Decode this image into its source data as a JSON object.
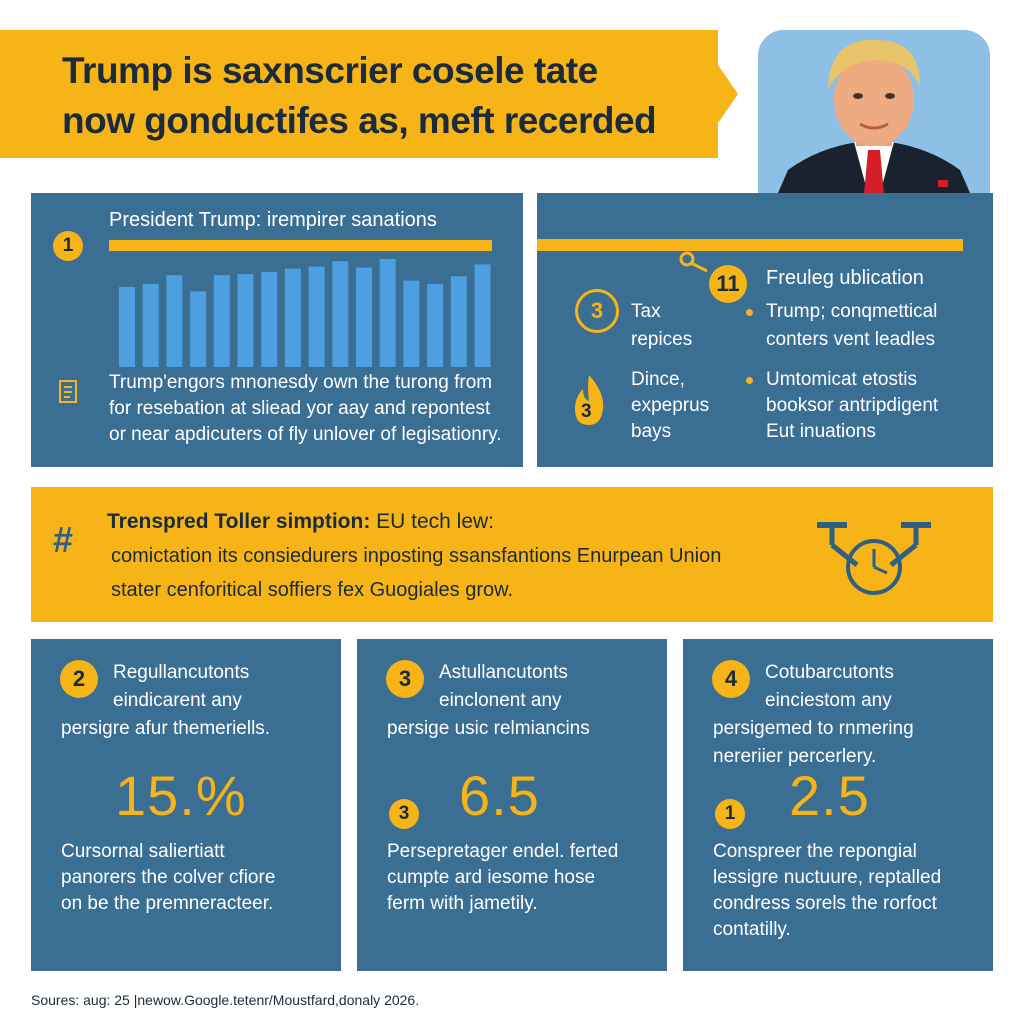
{
  "header": {
    "title_line1": "Trump is saxnscrier cosele tate",
    "title_line2": "now gonductifes as, meft recerded"
  },
  "portrait": {
    "alt": "Portrait photo"
  },
  "panel1": {
    "badge": "1",
    "title": "President Trump: irempirer sanations",
    "bar_values": [
      0.74,
      0.77,
      0.85,
      0.7,
      0.85,
      0.86,
      0.88,
      0.91,
      0.93,
      0.98,
      0.92,
      1.0,
      0.8,
      0.77,
      0.84,
      0.95
    ],
    "body": [
      "Trump'engors mnonesdy own the turong from",
      "for resebation at sliead yor aay and repontest",
      "or near apdicuters of fly unlover of legisationry."
    ]
  },
  "panel2": {
    "badge_top": "11",
    "heading": "Freuleg ublication",
    "item1_badge": "3",
    "item1_lines": [
      "Tax",
      "repices"
    ],
    "item2_badge": "3",
    "item2_lines": [
      "Dince,",
      "expeprus",
      "bays"
    ],
    "bullet1_lines": [
      "Trump; conqmettical",
      "conters vent leadles"
    ],
    "bullet2_lines": [
      "Umtomicat etostis",
      "booksor antripdigent",
      "Eut inuations"
    ]
  },
  "banner2": {
    "icon": "#",
    "heading_bold": "Trenspred Toller simption:",
    "heading_rest": " EU tech lew:",
    "line1": "comictation its consiedurers inposting ssansfantions Enurpean Union",
    "line2": "stater cenforitical soffiers fex Guogiales grow."
  },
  "cards": [
    {
      "badge": "2",
      "lines": [
        "Regullancutonts",
        "eindicarent any",
        "persigre afur themeriells."
      ],
      "value": "15.%",
      "footer": [
        "Cursornal saliertiatt",
        "panorers the colver cfiore",
        "on be the premneracteer."
      ]
    },
    {
      "badge": "3",
      "lines": [
        "Astullancutonts",
        "einclonent any",
        "persige usic relmiancins"
      ],
      "side_badge": "3",
      "value": "6.5",
      "footer": [
        "Persepretager endel. ferted",
        "cumpte ard iesome hose",
        "ferm with jametily."
      ]
    },
    {
      "badge": "4",
      "lines": [
        "Cotubarcutonts",
        "einciestom any",
        "persigemed to rnmering",
        "nereriier percerlery."
      ],
      "side_badge": "1",
      "value": "2.5",
      "footer": [
        "Conspreer the repongial",
        "lessigre nuctuure, reptalled",
        "condress sorels the rorfoct",
        "contatilly."
      ]
    }
  ],
  "source": "Soures: aug: 25 |newow.Google.tetenr/Moustfard,donaly 2026.",
  "colors": {
    "navy": "#3a6e92",
    "yellow": "#f6b417",
    "dark_text": "#1b2b3c",
    "bar": "#4d9fe0"
  }
}
